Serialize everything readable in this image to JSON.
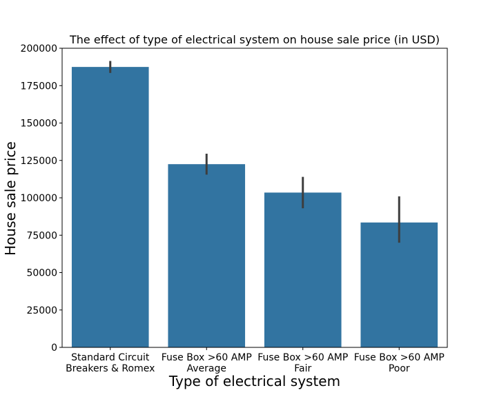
{
  "chart_data": {
    "type": "bar",
    "title": "The effect of type of electrical system on house sale price (in USD)",
    "xlabel": "Type of electrical system",
    "ylabel": "House sale price",
    "ylim": [
      0,
      200000
    ],
    "yticks": [
      0,
      25000,
      50000,
      75000,
      100000,
      125000,
      150000,
      175000,
      200000
    ],
    "categories": [
      [
        "Standard Circuit",
        "Breakers & Romex"
      ],
      [
        "Fuse Box >60 AMP",
        "Average"
      ],
      [
        "Fuse Box >60 AMP",
        "Fair"
      ],
      [
        "Fuse Box >60 AMP",
        "Poor"
      ]
    ],
    "values": [
      187500,
      122500,
      103500,
      83500
    ],
    "error_low": [
      183500,
      115500,
      93000,
      70000
    ],
    "error_high": [
      191500,
      129500,
      114000,
      101000
    ],
    "bar_color": "#3274a1",
    "errorbar_color": "#3d3d3d",
    "grid": false,
    "legend": "none"
  }
}
